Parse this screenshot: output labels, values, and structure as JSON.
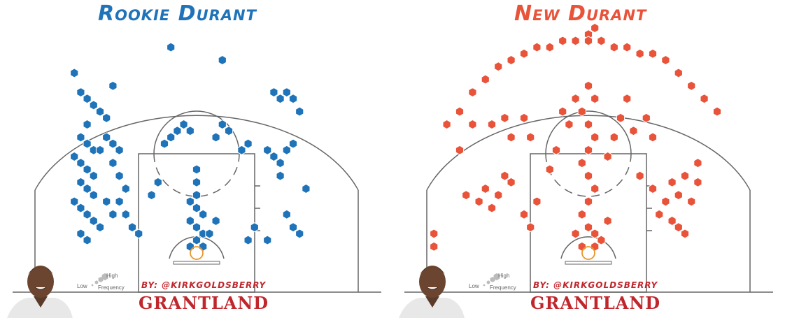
{
  "chart_data": [
    {
      "type": "scatter",
      "title": "Rookie Durant",
      "series_color": "#1f73b8",
      "byline": "BY: @KIRKGOLDSBERRY",
      "brand": "GRANTLAND",
      "legend": {
        "low": "Low",
        "high": "High",
        "frequency": "Frequency"
      },
      "points": [
        {
          "x": -19,
          "y": 28
        },
        {
          "x": -18,
          "y": 25
        },
        {
          "x": -17,
          "y": 24
        },
        {
          "x": -16,
          "y": 23
        },
        {
          "x": -15,
          "y": 22
        },
        {
          "x": -14,
          "y": 21
        },
        {
          "x": -17,
          "y": 20
        },
        {
          "x": -18,
          "y": 18
        },
        {
          "x": -17,
          "y": 17
        },
        {
          "x": -16,
          "y": 16
        },
        {
          "x": -15,
          "y": 16
        },
        {
          "x": -19,
          "y": 15
        },
        {
          "x": -18,
          "y": 14
        },
        {
          "x": -17,
          "y": 13
        },
        {
          "x": -16,
          "y": 12
        },
        {
          "x": -18,
          "y": 11
        },
        {
          "x": -17,
          "y": 10
        },
        {
          "x": -16,
          "y": 9
        },
        {
          "x": -19,
          "y": 8
        },
        {
          "x": -18,
          "y": 7
        },
        {
          "x": -17,
          "y": 6
        },
        {
          "x": -16,
          "y": 5
        },
        {
          "x": -15,
          "y": 4
        },
        {
          "x": -18,
          "y": 3
        },
        {
          "x": -17,
          "y": 2
        },
        {
          "x": -14,
          "y": 18
        },
        {
          "x": -13,
          "y": 17
        },
        {
          "x": -12,
          "y": 16
        },
        {
          "x": -13,
          "y": 14
        },
        {
          "x": -12,
          "y": 12
        },
        {
          "x": -11,
          "y": 10
        },
        {
          "x": -12,
          "y": 8
        },
        {
          "x": -11,
          "y": 6
        },
        {
          "x": -10,
          "y": 4
        },
        {
          "x": -9,
          "y": 3
        },
        {
          "x": -13,
          "y": 6
        },
        {
          "x": -14,
          "y": 8
        },
        {
          "x": -7,
          "y": 9
        },
        {
          "x": -6,
          "y": 11
        },
        {
          "x": -5,
          "y": 17
        },
        {
          "x": -4,
          "y": 18
        },
        {
          "x": -3,
          "y": 19
        },
        {
          "x": -2,
          "y": 20
        },
        {
          "x": -1,
          "y": 19
        },
        {
          "x": 0,
          "y": 13
        },
        {
          "x": 0,
          "y": 11
        },
        {
          "x": 0,
          "y": 9
        },
        {
          "x": -1,
          "y": 8
        },
        {
          "x": 0,
          "y": 7
        },
        {
          "x": 1,
          "y": 6
        },
        {
          "x": -1,
          "y": 5
        },
        {
          "x": 0,
          "y": 4
        },
        {
          "x": 1,
          "y": 3
        },
        {
          "x": 0,
          "y": 2
        },
        {
          "x": -1,
          "y": 1
        },
        {
          "x": 1,
          "y": 1
        },
        {
          "x": 2,
          "y": 3
        },
        {
          "x": 3,
          "y": 5
        },
        {
          "x": 3,
          "y": 18
        },
        {
          "x": 4,
          "y": 20
        },
        {
          "x": 5,
          "y": 19
        },
        {
          "x": 7,
          "y": 16
        },
        {
          "x": 8,
          "y": 17
        },
        {
          "x": 8,
          "y": 2
        },
        {
          "x": 9,
          "y": 4
        },
        {
          "x": 11,
          "y": 16
        },
        {
          "x": 12,
          "y": 15
        },
        {
          "x": 13,
          "y": 14
        },
        {
          "x": 14,
          "y": 16
        },
        {
          "x": 15,
          "y": 17
        },
        {
          "x": 13,
          "y": 12
        },
        {
          "x": 14,
          "y": 6
        },
        {
          "x": 15,
          "y": 4
        },
        {
          "x": 16,
          "y": 3
        },
        {
          "x": 17,
          "y": 10
        },
        {
          "x": 12,
          "y": 25
        },
        {
          "x": 13,
          "y": 24
        },
        {
          "x": 14,
          "y": 25
        },
        {
          "x": 15,
          "y": 24
        },
        {
          "x": 16,
          "y": 22
        },
        {
          "x": -4,
          "y": 32
        },
        {
          "x": 4,
          "y": 30
        },
        {
          "x": -13,
          "y": 26
        },
        {
          "x": 11,
          "y": 2
        }
      ]
    },
    {
      "type": "scatter",
      "title": "New Durant",
      "series_color": "#e8533a",
      "byline": "BY: @KIRKGOLDSBERRY",
      "brand": "GRANTLAND",
      "legend": {
        "low": "Low",
        "high": "High",
        "frequency": "Frequency"
      },
      "points": [
        {
          "x": -22,
          "y": 20
        },
        {
          "x": -20,
          "y": 22
        },
        {
          "x": -18,
          "y": 25
        },
        {
          "x": -16,
          "y": 27
        },
        {
          "x": -14,
          "y": 29
        },
        {
          "x": -12,
          "y": 30
        },
        {
          "x": -10,
          "y": 31
        },
        {
          "x": -8,
          "y": 32
        },
        {
          "x": -6,
          "y": 32
        },
        {
          "x": -4,
          "y": 33
        },
        {
          "x": -2,
          "y": 33
        },
        {
          "x": 0,
          "y": 34
        },
        {
          "x": 1,
          "y": 35
        },
        {
          "x": 0,
          "y": 33
        },
        {
          "x": 2,
          "y": 33
        },
        {
          "x": 4,
          "y": 32
        },
        {
          "x": 6,
          "y": 32
        },
        {
          "x": 8,
          "y": 31
        },
        {
          "x": 10,
          "y": 31
        },
        {
          "x": 12,
          "y": 30
        },
        {
          "x": 14,
          "y": 28
        },
        {
          "x": 16,
          "y": 26
        },
        {
          "x": 18,
          "y": 24
        },
        {
          "x": 20,
          "y": 22
        },
        {
          "x": -18,
          "y": 20
        },
        {
          "x": -15,
          "y": 20
        },
        {
          "x": -13,
          "y": 21
        },
        {
          "x": -12,
          "y": 18
        },
        {
          "x": -10,
          "y": 21
        },
        {
          "x": -9,
          "y": 18
        },
        {
          "x": -20,
          "y": 16
        },
        {
          "x": -19,
          "y": 9
        },
        {
          "x": -17,
          "y": 8
        },
        {
          "x": -16,
          "y": 10
        },
        {
          "x": -15,
          "y": 7
        },
        {
          "x": -14,
          "y": 9
        },
        {
          "x": -13,
          "y": 12
        },
        {
          "x": -12,
          "y": 11
        },
        {
          "x": -24,
          "y": 3
        },
        {
          "x": -24,
          "y": 1
        },
        {
          "x": -10,
          "y": 6
        },
        {
          "x": -9,
          "y": 4
        },
        {
          "x": -8,
          "y": 8
        },
        {
          "x": -6,
          "y": 13
        },
        {
          "x": -5,
          "y": 16
        },
        {
          "x": -4,
          "y": 22
        },
        {
          "x": -3,
          "y": 20
        },
        {
          "x": -2,
          "y": 24
        },
        {
          "x": -1,
          "y": 22
        },
        {
          "x": 0,
          "y": 26
        },
        {
          "x": 1,
          "y": 24
        },
        {
          "x": 0,
          "y": 20
        },
        {
          "x": 1,
          "y": 18
        },
        {
          "x": 0,
          "y": 16
        },
        {
          "x": -1,
          "y": 14
        },
        {
          "x": 0,
          "y": 12
        },
        {
          "x": 1,
          "y": 10
        },
        {
          "x": 0,
          "y": 8
        },
        {
          "x": -1,
          "y": 6
        },
        {
          "x": 0,
          "y": 4
        },
        {
          "x": 1,
          "y": 3
        },
        {
          "x": -2,
          "y": 3
        },
        {
          "x": 2,
          "y": 2
        },
        {
          "x": -1,
          "y": 1
        },
        {
          "x": 1,
          "y": 1
        },
        {
          "x": 3,
          "y": 5
        },
        {
          "x": 3,
          "y": 15
        },
        {
          "x": 4,
          "y": 18
        },
        {
          "x": 5,
          "y": 21
        },
        {
          "x": 6,
          "y": 24
        },
        {
          "x": 7,
          "y": 19
        },
        {
          "x": 9,
          "y": 21
        },
        {
          "x": 10,
          "y": 18
        },
        {
          "x": 8,
          "y": 12
        },
        {
          "x": 10,
          "y": 10
        },
        {
          "x": 12,
          "y": 8
        },
        {
          "x": 11,
          "y": 6
        },
        {
          "x": 13,
          "y": 5
        },
        {
          "x": 14,
          "y": 4
        },
        {
          "x": 15,
          "y": 3
        },
        {
          "x": 14,
          "y": 9
        },
        {
          "x": 13,
          "y": 11
        },
        {
          "x": 15,
          "y": 12
        },
        {
          "x": 17,
          "y": 14
        },
        {
          "x": 17,
          "y": 11
        },
        {
          "x": 16,
          "y": 8
        }
      ]
    }
  ]
}
